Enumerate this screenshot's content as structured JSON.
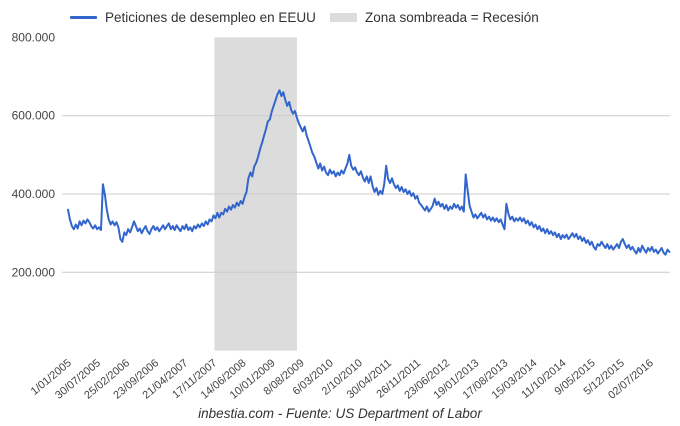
{
  "legend": {
    "series_label": "Peticiones de desempleo en EEUU",
    "recession_label": "Zona sombreada = Recesión"
  },
  "footer": {
    "caption": "inbestia.com - Fuente: US Department of Labor"
  },
  "colors": {
    "line": "#3366cc",
    "recession_band": "#dcdcdc",
    "gridline": "#cccccc",
    "axis_text": "#444444",
    "legend_text": "#333333"
  },
  "chart_data": {
    "type": "line",
    "title": "",
    "xlabel": "",
    "ylabel": "",
    "legend_position": "top",
    "grid": "horizontal-only",
    "ylim": [
      0,
      800000
    ],
    "y_ticks": [
      {
        "value": 800000,
        "label": "800.000",
        "gridline": false
      },
      {
        "value": 600000,
        "label": "600.000",
        "gridline": true
      },
      {
        "value": 400000,
        "label": "400.000",
        "gridline": true
      },
      {
        "value": 200000,
        "label": "200.000",
        "gridline": true
      }
    ],
    "x_total_weeks": 620,
    "x_tick_weeks": [
      0,
      30,
      60,
      90,
      120,
      150,
      180,
      210,
      240,
      270,
      300,
      330,
      360,
      390,
      420,
      450,
      480,
      510,
      540,
      570,
      600
    ],
    "x_tick_labels": [
      "1/01/2005",
      "30/07/2005",
      "25/02/2006",
      "23/09/2006",
      "21/04/2007",
      "17/11/2007",
      "14/06/2008",
      "10/01/2009",
      "8/08/2009",
      "6/03/2010",
      "2/10/2010",
      "30/04/2011",
      "26/11/2011",
      "23/06/2012",
      "19/01/2013",
      "17/08/2013",
      "15/03/2014",
      "11/10/2014",
      "9/05/2015",
      "5/12/2015",
      "02/07/2016"
    ],
    "recession_band_weeks": [
      151,
      236
    ],
    "series_name": "Peticiones de desempleo en EEUU",
    "week_step": 2,
    "values_thousands": [
      360,
      335,
      318,
      310,
      322,
      312,
      330,
      320,
      332,
      325,
      335,
      328,
      318,
      312,
      320,
      310,
      315,
      308,
      425,
      398,
      360,
      335,
      322,
      330,
      320,
      328,
      315,
      285,
      278,
      302,
      295,
      310,
      302,
      315,
      330,
      318,
      305,
      312,
      300,
      310,
      318,
      305,
      298,
      310,
      318,
      308,
      315,
      305,
      312,
      320,
      310,
      318,
      325,
      310,
      318,
      308,
      320,
      312,
      305,
      318,
      310,
      322,
      308,
      315,
      305,
      318,
      312,
      322,
      315,
      325,
      318,
      330,
      322,
      335,
      330,
      345,
      338,
      352,
      340,
      352,
      348,
      362,
      355,
      368,
      360,
      372,
      365,
      378,
      370,
      382,
      375,
      392,
      405,
      440,
      455,
      445,
      470,
      480,
      495,
      515,
      530,
      548,
      565,
      585,
      590,
      610,
      625,
      640,
      655,
      665,
      650,
      660,
      640,
      625,
      635,
      615,
      605,
      612,
      595,
      580,
      570,
      560,
      572,
      550,
      535,
      520,
      505,
      495,
      480,
      465,
      478,
      460,
      470,
      455,
      448,
      462,
      452,
      458,
      445,
      455,
      448,
      460,
      452,
      465,
      478,
      500,
      472,
      462,
      468,
      455,
      448,
      458,
      442,
      432,
      445,
      428,
      445,
      420,
      405,
      415,
      398,
      408,
      400,
      425,
      472,
      438,
      428,
      440,
      425,
      415,
      422,
      408,
      418,
      405,
      412,
      400,
      408,
      395,
      402,
      388,
      395,
      378,
      372,
      365,
      358,
      368,
      355,
      362,
      370,
      388,
      372,
      380,
      368,
      375,
      362,
      372,
      358,
      368,
      362,
      375,
      365,
      372,
      360,
      368,
      355,
      450,
      410,
      370,
      355,
      340,
      348,
      338,
      345,
      352,
      340,
      348,
      335,
      342,
      332,
      340,
      330,
      338,
      328,
      335,
      322,
      310,
      375,
      350,
      335,
      342,
      330,
      338,
      332,
      340,
      330,
      338,
      325,
      332,
      320,
      328,
      315,
      322,
      310,
      318,
      305,
      312,
      300,
      310,
      298,
      305,
      295,
      302,
      290,
      298,
      285,
      295,
      288,
      296,
      285,
      292,
      300,
      290,
      298,
      285,
      292,
      280,
      288,
      275,
      282,
      270,
      278,
      265,
      258,
      272,
      268,
      278,
      270,
      262,
      272,
      260,
      268,
      258,
      265,
      272,
      262,
      278,
      285,
      272,
      262,
      270,
      258,
      265,
      255,
      248,
      262,
      252,
      268,
      258,
      250,
      262,
      255,
      265,
      252,
      258,
      248,
      255,
      262,
      250,
      245,
      258,
      252
    ]
  }
}
